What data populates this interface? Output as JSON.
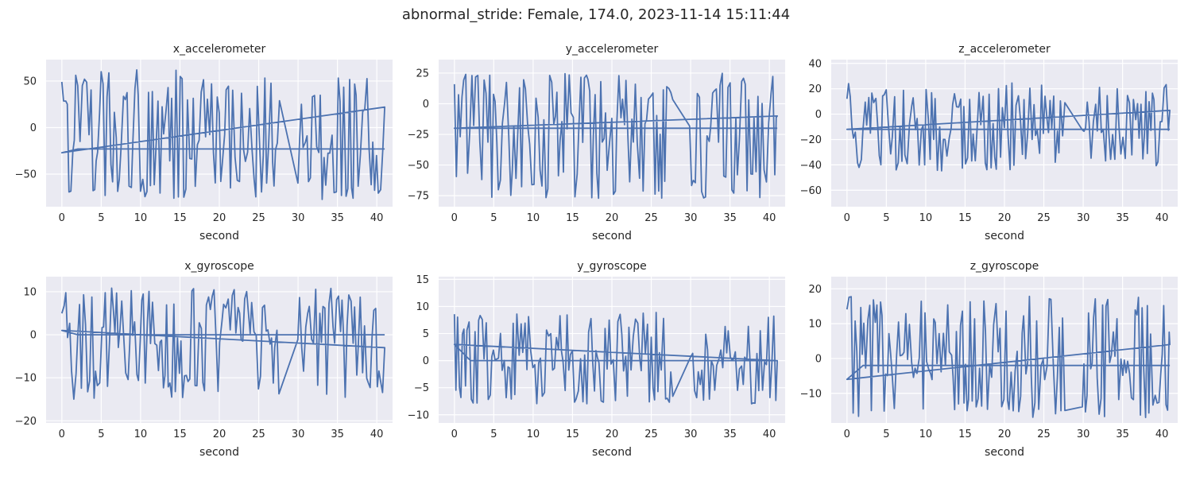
{
  "figure": {
    "suptitle": "abnormal_stride: Female, 174.0, 2023-11-14 15:11:44",
    "bg_color": "#eaeaf2",
    "grid_color": "#ffffff",
    "line_color": "#4c72b0"
  },
  "chart_data": [
    {
      "type": "line",
      "title": "x_accelerometer",
      "xlabel": "second",
      "ylabel": "",
      "xlim": [
        -2,
        42
      ],
      "ylim": [
        -85,
        73
      ],
      "xticks": [
        0,
        5,
        10,
        15,
        20,
        25,
        30,
        35,
        40
      ],
      "yticks": [
        -50,
        0,
        50
      ],
      "ytick_labels": [
        "−50",
        "0",
        "50"
      ],
      "series": {
        "name": "x_accelerometer",
        "base": -23,
        "low": -78,
        "high": 62,
        "mid_dip": -48,
        "trend_start": -27,
        "trend_end": 22,
        "seed": 11,
        "x_range": [
          0,
          41
        ]
      }
    },
    {
      "type": "line",
      "title": "y_accelerometer",
      "xlabel": "second",
      "ylabel": "",
      "xlim": [
        -2,
        42
      ],
      "ylim": [
        -84,
        36
      ],
      "xticks": [
        0,
        5,
        10,
        15,
        20,
        25,
        30,
        35,
        40
      ],
      "yticks": [
        -75,
        -50,
        -25,
        0,
        25
      ],
      "ytick_labels": [
        "−75",
        "−50",
        "−25",
        "0",
        "25"
      ],
      "series": {
        "name": "y_accelerometer",
        "base": -20,
        "low": -78,
        "high": 25,
        "mid_dip": -10,
        "trend_start": -20,
        "trend_end": -10,
        "seed": 23,
        "x_range": [
          0,
          41
        ]
      }
    },
    {
      "type": "line",
      "title": "z_accelerometer",
      "xlabel": "second",
      "ylabel": "",
      "xlim": [
        -2,
        42
      ],
      "ylim": [
        -73,
        43
      ],
      "xticks": [
        0,
        5,
        10,
        15,
        20,
        25,
        30,
        35,
        40
      ],
      "yticks": [
        -60,
        -40,
        -20,
        0,
        20,
        40
      ],
      "ytick_labels": [
        "−60",
        "−40",
        "−20",
        "0",
        "20",
        "40"
      ],
      "series": {
        "name": "z_accelerometer",
        "base": -12,
        "low": -45,
        "high": 25,
        "mid_dip": 5,
        "trend_start": -12,
        "trend_end": 3,
        "seed": 37,
        "x_range": [
          0,
          41
        ]
      }
    },
    {
      "type": "line",
      "title": "x_gyroscope",
      "xlabel": "second",
      "ylabel": "",
      "xlim": [
        -2,
        42
      ],
      "ylim": [
        -20.5,
        13.5
      ],
      "xticks": [
        0,
        5,
        10,
        15,
        20,
        25,
        30,
        35,
        40
      ],
      "yticks": [
        -20,
        -10,
        0,
        10
      ],
      "ytick_labels": [
        "−20",
        "−10",
        "0",
        "10"
      ],
      "series": {
        "name": "x_gyroscope",
        "base": 0,
        "low": -15,
        "high": 11,
        "mid_dip": 3,
        "trend_start": 1,
        "trend_end": -3,
        "seed": 41,
        "x_range": [
          0,
          41
        ]
      }
    },
    {
      "type": "line",
      "title": "y_gyroscope",
      "xlabel": "second",
      "ylabel": "",
      "xlim": [
        -2,
        42
      ],
      "ylim": [
        -11.5,
        15.5
      ],
      "xticks": [
        0,
        5,
        10,
        15,
        20,
        25,
        30,
        35,
        40
      ],
      "yticks": [
        -10,
        -5,
        0,
        5,
        10,
        15
      ],
      "ytick_labels": [
        "−10",
        "−5",
        "0",
        "5",
        "10",
        "15"
      ],
      "series": {
        "name": "y_gyroscope",
        "base": 0,
        "low": -8,
        "high": 9,
        "mid_dip": 2,
        "trend_start": 3,
        "trend_end": 0,
        "seed": 53,
        "x_range": [
          0,
          41
        ]
      }
    },
    {
      "type": "line",
      "title": "z_gyroscope",
      "xlabel": "second",
      "ylabel": "",
      "xlim": [
        -2,
        42
      ],
      "ylim": [
        -18.5,
        23.5
      ],
      "xticks": [
        0,
        5,
        10,
        15,
        20,
        25,
        30,
        35,
        40
      ],
      "yticks": [
        -10,
        0,
        10,
        20
      ],
      "ytick_labels": [
        "−10",
        "0",
        "10",
        "20"
      ],
      "series": {
        "name": "z_gyroscope",
        "base": -2,
        "low": -17,
        "high": 18,
        "mid_dip": -12,
        "trend_start": -6,
        "trend_end": 4,
        "seed": 67,
        "x_range": [
          0,
          41
        ]
      }
    }
  ]
}
